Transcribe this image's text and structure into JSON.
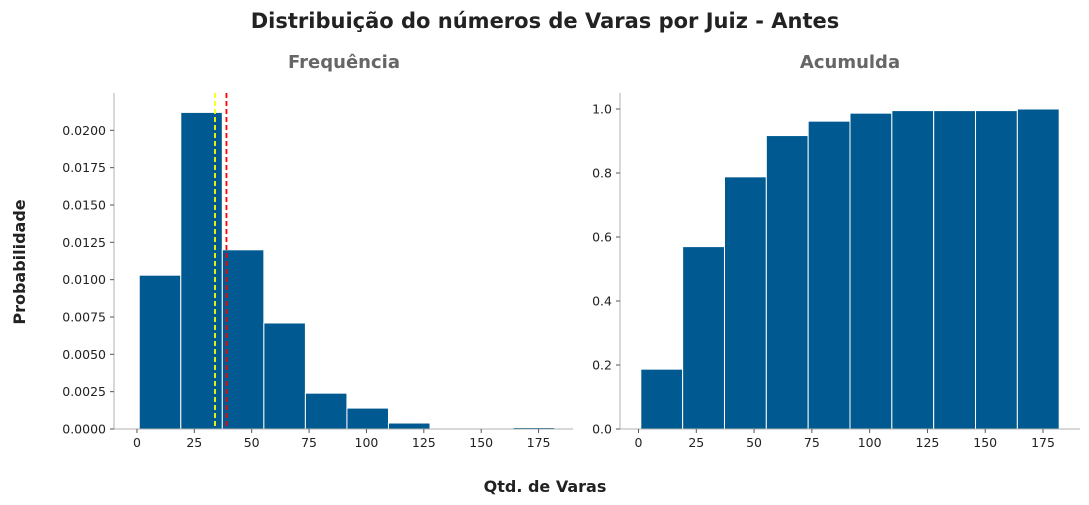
{
  "figure": {
    "suptitle": "Distribuição do números de Varas por Juiz - Antes",
    "xlabel": "Qtd. de Varas",
    "ylabel": "Probabilidade"
  },
  "colors": {
    "bar": "#005a91",
    "bar_edge": "#ffffff",
    "mean_line": "#ff0000",
    "median_line": "#ffff00"
  },
  "chart_data": [
    {
      "type": "bar",
      "title": "Frequência",
      "bin_edges": [
        1,
        19.1,
        37.2,
        55.3,
        73.4,
        91.5,
        109.6,
        127.7,
        145.8,
        163.9,
        182
      ],
      "values": [
        0.0103,
        0.0212,
        0.012,
        0.0071,
        0.0024,
        0.0014,
        0.0004,
        0.0,
        0.0,
        0.0001
      ],
      "xlim": [
        -10,
        190
      ],
      "ylim": [
        0,
        0.0225
      ],
      "xticks": [
        0,
        25,
        50,
        75,
        100,
        125,
        150,
        175
      ],
      "yticks": [
        "0.0000",
        "0.0025",
        "0.0050",
        "0.0075",
        "0.0100",
        "0.0125",
        "0.0150",
        "0.0175",
        "0.0200"
      ],
      "vlines": [
        {
          "x": 34,
          "color": "#ffff00",
          "style": "dashed"
        },
        {
          "x": 39,
          "color": "#ff0000",
          "style": "dashed"
        }
      ]
    },
    {
      "type": "bar",
      "title": "Acumulda",
      "bin_edges": [
        1,
        19.1,
        37.2,
        55.3,
        73.4,
        91.5,
        109.6,
        127.7,
        145.8,
        163.9,
        182
      ],
      "values": [
        0.187,
        0.57,
        0.788,
        0.917,
        0.962,
        0.987,
        0.995,
        0.995,
        0.995,
        1.0
      ],
      "xlim": [
        -8,
        191
      ],
      "ylim": [
        0,
        1.05
      ],
      "xticks": [
        0,
        25,
        50,
        75,
        100,
        125,
        150,
        175
      ],
      "yticks": [
        "0.0",
        "0.2",
        "0.4",
        "0.6",
        "0.8",
        "1.0"
      ]
    }
  ]
}
